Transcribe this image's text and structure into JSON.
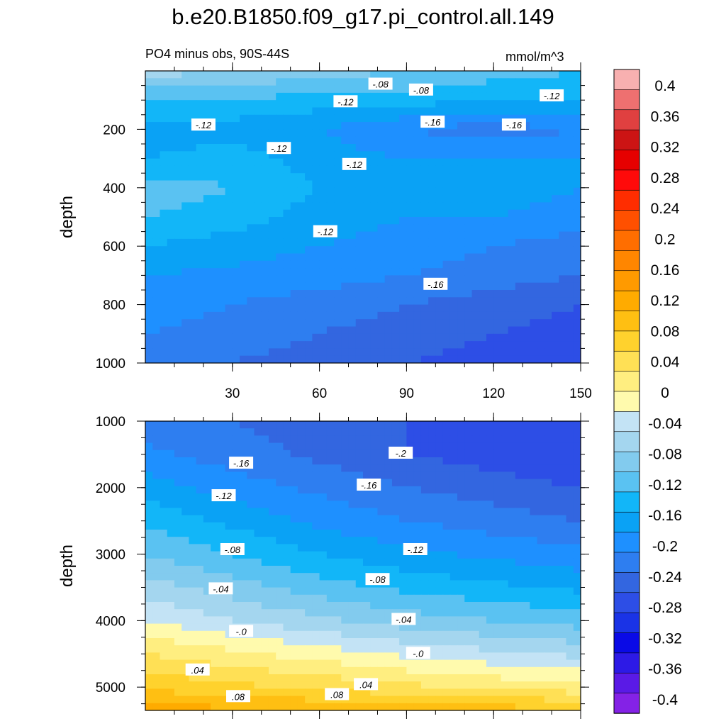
{
  "title": "b.e20.B1850.f09_g17.pi_control.all.149",
  "subtitle_left": "PO4 minus obs, 90S-44S",
  "subtitle_right": "mmol/m^3",
  "colors": {
    "cmap": [
      "#8422e6",
      "#5a1ae6",
      "#2d1ae6",
      "#0a0ae6",
      "#1a33e6",
      "#2d4ee6",
      "#3366e0",
      "#2e7ef0",
      "#1e90ff",
      "#0aa2f5",
      "#12b6f8",
      "#5ac2f2",
      "#82cbee",
      "#a4d6ef",
      "#c3e3f5",
      "#fffaad",
      "#ffee80",
      "#ffe055",
      "#ffd22d",
      "#ffbf12",
      "#ffab00",
      "#ff9a00",
      "#ff8600",
      "#ff6e00",
      "#ff5000",
      "#ff2d00",
      "#ff0a0a",
      "#e60000",
      "#cc1414",
      "#e04040",
      "#ee7070",
      "#f8b0b0"
    ]
  },
  "chart_data": [
    {
      "type": "contour",
      "panel": "upper",
      "title": "PO4 minus obs, 90S-44S",
      "units": "mmol/m^3",
      "xlabel": "",
      "ylabel": "depth",
      "xlim": [
        0,
        150
      ],
      "ylim": [
        1000,
        0
      ],
      "x_ticks": [
        30,
        60,
        90,
        120,
        150
      ],
      "y_ticks": [
        200,
        400,
        600,
        800,
        1000
      ],
      "x_grid": [
        0,
        30,
        60,
        90,
        120,
        150
      ],
      "y_grid": [
        0,
        100,
        200,
        300,
        400,
        500,
        600,
        700,
        800,
        900,
        1000
      ],
      "z": [
        [
          -0.05,
          -0.06,
          -0.07,
          -0.08,
          -0.09,
          -0.1
        ],
        [
          -0.1,
          -0.1,
          -0.11,
          -0.11,
          -0.12,
          -0.12
        ],
        [
          -0.13,
          -0.13,
          -0.14,
          -0.16,
          -0.17,
          -0.16
        ],
        [
          -0.12,
          -0.11,
          -0.13,
          -0.14,
          -0.14,
          -0.14
        ],
        [
          -0.09,
          -0.1,
          -0.12,
          -0.13,
          -0.13,
          -0.14
        ],
        [
          -0.1,
          -0.11,
          -0.13,
          -0.14,
          -0.14,
          -0.15
        ],
        [
          -0.12,
          -0.13,
          -0.14,
          -0.15,
          -0.16,
          -0.17
        ],
        [
          -0.14,
          -0.145,
          -0.15,
          -0.16,
          -0.17,
          -0.18
        ],
        [
          -0.15,
          -0.16,
          -0.17,
          -0.18,
          -0.19,
          -0.2
        ],
        [
          -0.16,
          -0.17,
          -0.18,
          -0.19,
          -0.2,
          -0.21
        ],
        [
          -0.17,
          -0.18,
          -0.19,
          -0.2,
          -0.21,
          -0.22
        ]
      ],
      "contour_labels": [
        {
          "text": "-.08",
          "x": 81,
          "y": 45
        },
        {
          "text": "-.08",
          "x": 95,
          "y": 65
        },
        {
          "text": "-.12",
          "x": 140,
          "y": 85
        },
        {
          "text": "-.12",
          "x": 69,
          "y": 105
        },
        {
          "text": "-.16",
          "x": 99,
          "y": 175
        },
        {
          "text": "-.16",
          "x": 127,
          "y": 185
        },
        {
          "text": "-.12",
          "x": 20,
          "y": 185
        },
        {
          "text": "-.12",
          "x": 46,
          "y": 265
        },
        {
          "text": "-.12",
          "x": 72,
          "y": 320
        },
        {
          "text": "-.12",
          "x": 62,
          "y": 550
        },
        {
          "text": "-.16",
          "x": 100,
          "y": 730
        }
      ]
    },
    {
      "type": "contour",
      "panel": "lower",
      "xlabel": "",
      "ylabel": "depth",
      "xlim": [
        0,
        150
      ],
      "ylim": [
        5350,
        1000
      ],
      "x_ticks": [
        30,
        60,
        90,
        120,
        150
      ],
      "y_ticks": [
        1000,
        2000,
        3000,
        4000,
        5000
      ],
      "x_grid": [
        0,
        30,
        60,
        90,
        120,
        150
      ],
      "y_grid": [
        1000,
        1500,
        2000,
        2500,
        3000,
        3500,
        4000,
        4500,
        5000,
        5350
      ],
      "z": [
        [
          -0.17,
          -0.18,
          -0.19,
          -0.2,
          -0.21,
          -0.22
        ],
        [
          -0.155,
          -0.17,
          -0.185,
          -0.2,
          -0.21,
          -0.22
        ],
        [
          -0.13,
          -0.15,
          -0.165,
          -0.18,
          -0.19,
          -0.2
        ],
        [
          -0.105,
          -0.125,
          -0.145,
          -0.16,
          -0.17,
          -0.18
        ],
        [
          -0.08,
          -0.1,
          -0.12,
          -0.135,
          -0.145,
          -0.155
        ],
        [
          -0.05,
          -0.07,
          -0.09,
          -0.105,
          -0.115,
          -0.125
        ],
        [
          -0.02,
          -0.04,
          -0.055,
          -0.07,
          -0.08,
          -0.09
        ],
        [
          0.02,
          0.005,
          -0.01,
          -0.025,
          -0.035,
          -0.045
        ],
        [
          0.055,
          0.045,
          0.035,
          0.025,
          0.015,
          0.005
        ],
        [
          0.09,
          0.085,
          0.08,
          0.075,
          0.07,
          0.065
        ]
      ],
      "contour_labels": [
        {
          "text": "-.2",
          "x": 88,
          "y": 1480
        },
        {
          "text": "-.16",
          "x": 33,
          "y": 1630
        },
        {
          "text": "-.16",
          "x": 77,
          "y": 1960
        },
        {
          "text": "-.12",
          "x": 27,
          "y": 2120
        },
        {
          "text": "-.12",
          "x": 93,
          "y": 2930
        },
        {
          "text": "-.08",
          "x": 30,
          "y": 2930
        },
        {
          "text": "-.08",
          "x": 80,
          "y": 3380
        },
        {
          "text": "-.04",
          "x": 26,
          "y": 3520
        },
        {
          "text": "-.04",
          "x": 89,
          "y": 3980
        },
        {
          "text": "-.0",
          "x": 33,
          "y": 4160
        },
        {
          "text": "-.0",
          "x": 94,
          "y": 4490
        },
        {
          "text": ".04",
          "x": 18,
          "y": 4740
        },
        {
          "text": ".04",
          "x": 76,
          "y": 4960
        },
        {
          "text": ".08",
          "x": 32,
          "y": 5140
        },
        {
          "text": ".08",
          "x": 66,
          "y": 5110
        }
      ]
    },
    {
      "type": "colorbar",
      "levels": [
        -0.42,
        -0.4,
        -0.38,
        -0.36,
        -0.34,
        -0.32,
        -0.3,
        -0.28,
        -0.26,
        -0.24,
        -0.22,
        -0.2,
        -0.18,
        -0.16,
        -0.14,
        -0.12,
        -0.1,
        -0.08,
        -0.06,
        -0.04,
        -0.02,
        0,
        0.02,
        0.04,
        0.06,
        0.08,
        0.1,
        0.12,
        0.14,
        0.16,
        0.18,
        0.2,
        0.22,
        0.24,
        0.26,
        0.28,
        0.3,
        0.32,
        0.34,
        0.36,
        0.38,
        0.4,
        0.42
      ],
      "tick_labels": [
        "0.4",
        "0.36",
        "0.32",
        "0.28",
        "0.24",
        "0.2",
        "0.16",
        "0.12",
        "0.08",
        "0.04",
        "0",
        "-0.04",
        "-0.08",
        "-0.12",
        "-0.16",
        "-0.2",
        "-0.24",
        "-0.28",
        "-0.32",
        "-0.36",
        "-0.4"
      ]
    }
  ]
}
